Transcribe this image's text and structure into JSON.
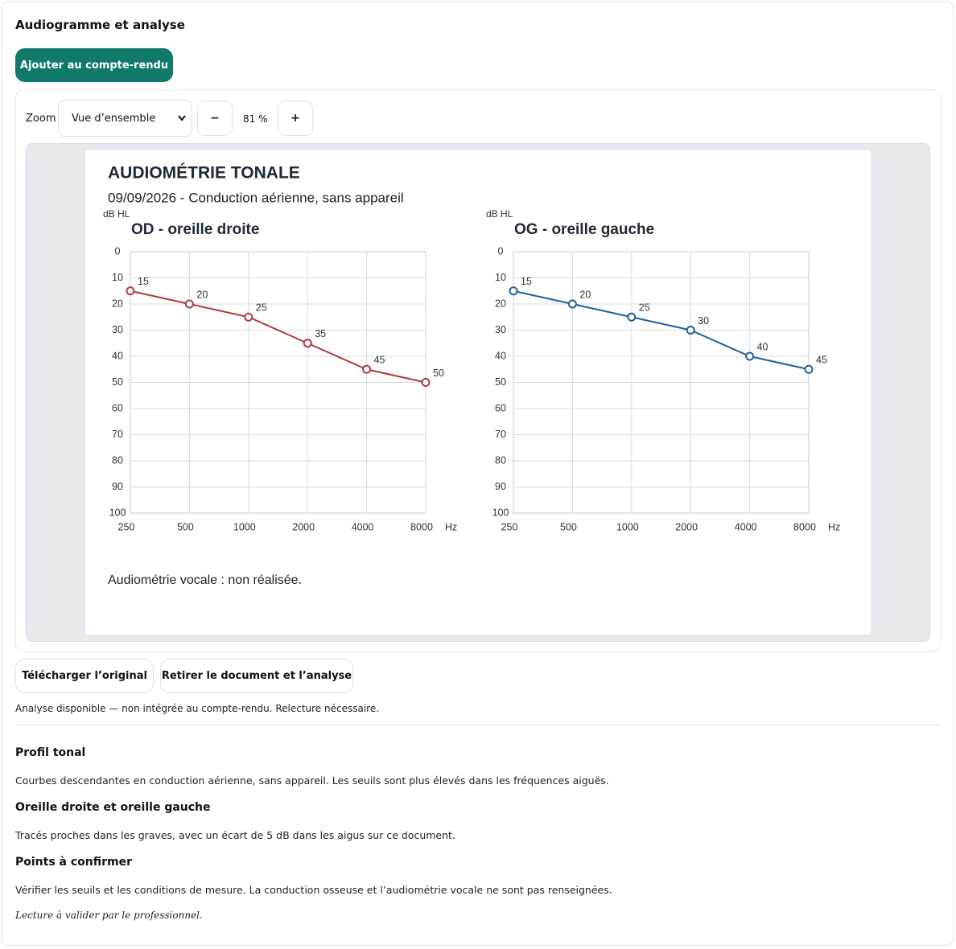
{
  "header": {
    "title": "Audiogramme et analyse",
    "add_button": "Ajouter au compte-rendu"
  },
  "toolbar": {
    "zoom_label": "Zoom",
    "zoom_select": "Vue d’ensemble",
    "zoom_out": "−",
    "zoom_level": "81 %",
    "zoom_in": "+"
  },
  "document": {
    "title": "AUDIOMÉTRIE TONALE",
    "subtitle": "09/09/2026 - Conduction aérienne, sans appareil",
    "note": "Audiométrie vocale : non réalisée."
  },
  "chart_data": [
    {
      "type": "line",
      "title": "OD - oreille droite",
      "y_label": "dB HL",
      "x_label": "Hz",
      "categories": [
        "250",
        "500",
        "1000",
        "2000",
        "4000",
        "8000"
      ],
      "series": [
        {
          "color": "#b03a3f",
          "values": [
            15,
            20,
            25,
            35,
            45,
            50
          ]
        }
      ],
      "ylim": [
        0,
        100
      ],
      "y_inverted": true,
      "yticks": [
        0,
        10,
        20,
        30,
        40,
        50,
        60,
        70,
        80,
        90,
        100
      ],
      "grid": true
    },
    {
      "type": "line",
      "title": "OG - oreille gauche",
      "y_label": "dB HL",
      "x_label": "Hz",
      "categories": [
        "250",
        "500",
        "1000",
        "2000",
        "4000",
        "8000"
      ],
      "series": [
        {
          "color": "#22609a",
          "values": [
            15,
            20,
            25,
            30,
            40,
            45
          ]
        }
      ],
      "ylim": [
        0,
        100
      ],
      "y_inverted": true,
      "yticks": [
        0,
        10,
        20,
        30,
        40,
        50,
        60,
        70,
        80,
        90,
        100
      ],
      "grid": true
    }
  ],
  "actions": {
    "download": "Télécharger l’original",
    "remove": "Retirer le document et l’analyse",
    "status": "Analyse disponible — non intégrée au compte-rendu. Relecture nécessaire."
  },
  "analysis": {
    "sections": [
      {
        "heading": "Profil tonal",
        "text": "Courbes descendantes en conduction aérienne, sans appareil. Les seuils sont plus élevés dans les fréquences aiguës."
      },
      {
        "heading": "Oreille droite et oreille gauche",
        "text": "Tracés proches dans les graves, avec un écart de 5 dB dans les aigus sur ce document."
      },
      {
        "heading": "Points à confirmer",
        "text": "Vérifier les seuils et les conditions de mesure. La conduction osseuse et l’audiométrie vocale ne sont pas renseignées."
      }
    ],
    "footer": "Lecture à valider par le professionnel."
  }
}
